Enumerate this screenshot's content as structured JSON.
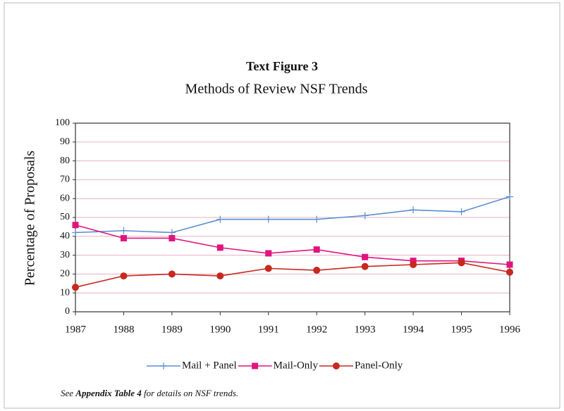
{
  "chart_data": {
    "type": "line",
    "title": "Text Figure 3",
    "subtitle": "Methods of Review NSF Trends",
    "y_label": "Percentage of Proposals",
    "categories": [
      "1987",
      "1988",
      "1989",
      "1990",
      "1991",
      "1992",
      "1993",
      "1994",
      "1995",
      "1996"
    ],
    "series": [
      {
        "name": "Mail + Panel",
        "color": "#5a8fd0",
        "marker": "plus",
        "values": [
          42,
          43,
          42,
          49,
          49,
          49,
          51,
          54,
          53,
          61
        ]
      },
      {
        "name": "Mail-Only",
        "color": "#e0147f",
        "marker": "square",
        "values": [
          46,
          39,
          39,
          34,
          31,
          33,
          29,
          27,
          27,
          25
        ]
      },
      {
        "name": "Panel-Only",
        "color": "#c8281e",
        "marker": "circle",
        "values": [
          13,
          19,
          20,
          19,
          23,
          22,
          24,
          25,
          26,
          21
        ]
      }
    ],
    "ylim": [
      0,
      100
    ],
    "yticks": [
      0,
      10,
      20,
      30,
      40,
      50,
      60,
      70,
      80,
      90,
      100
    ],
    "grid": true,
    "legend": "bottom",
    "footnote": [
      "See ",
      "Appendix Table 4",
      " for details on NSF trends."
    ]
  }
}
